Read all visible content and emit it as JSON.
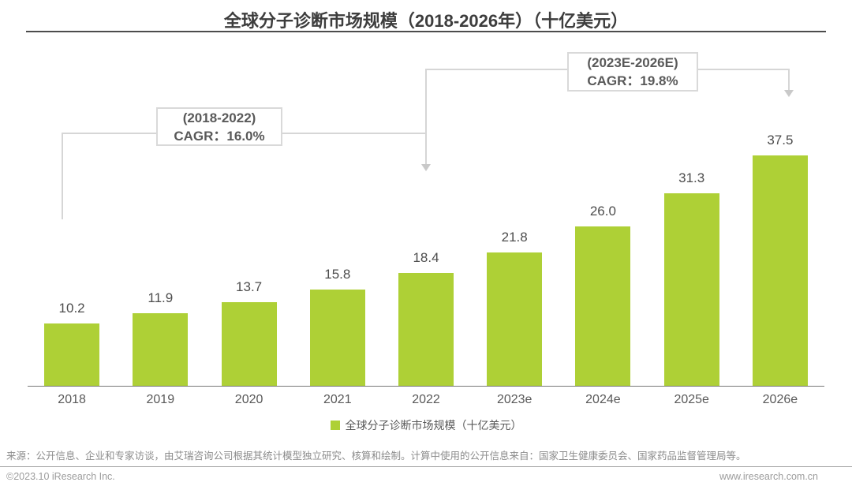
{
  "title": "全球分子诊断市场规模（2018-2026年）（十亿美元）",
  "chart_data": {
    "type": "bar",
    "title": "全球分子诊断市场规模（2018-2026年）（十亿美元）",
    "categories": [
      "2018",
      "2019",
      "2020",
      "2021",
      "2022",
      "2023e",
      "2024e",
      "2025e",
      "2026e"
    ],
    "values": [
      10.2,
      11.9,
      13.7,
      15.8,
      18.4,
      21.8,
      26.0,
      31.3,
      37.5
    ],
    "value_labels": [
      "10.2",
      "11.9",
      "13.7",
      "15.8",
      "18.4",
      "21.8",
      "26.0",
      "31.3",
      "37.5"
    ],
    "series_name": "全球分子诊断市场规模（十亿美元）",
    "xlabel": "",
    "ylabel": "",
    "ylim": [
      0,
      40
    ],
    "grid": false,
    "legend_position": "bottom",
    "bar_color": "#aed036",
    "annotations": [
      {
        "period": "(2018-2022)",
        "cagr": "CAGR：16.0%"
      },
      {
        "period": "(2023E-2026E)",
        "cagr": "CAGR：19.8%"
      }
    ]
  },
  "legend": {
    "label": "全球分子诊断市场规模（十亿美元）",
    "swatch_color": "#aed036"
  },
  "footer": {
    "source": "来源：公开信息、企业和专家访谈，由艾瑞咨询公司根据其统计模型独立研究、核算和绘制。计算中使用的公开信息来自：国家卫生健康委员会、国家药品监督管理局等。",
    "copyright": "©2023.10 iResearch Inc.",
    "website": "www.iresearch.com.cn"
  },
  "colors": {
    "bar": "#aed036",
    "title_text": "#3d3d3d",
    "axis_label": "#595959",
    "value_label": "#4d4d4d",
    "connector": "#d6d6d6",
    "box_border": "#d9d9d9",
    "footer_text": "#8c8c8c"
  }
}
